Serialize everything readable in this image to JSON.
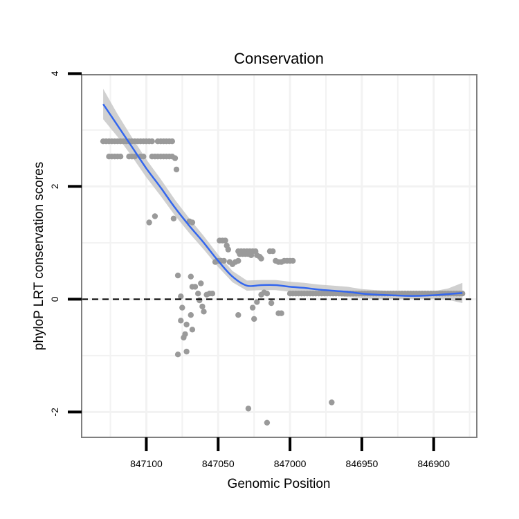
{
  "chart_data": {
    "type": "scatter",
    "title": "Conservation",
    "xlabel": "Genomic Position",
    "ylabel": "phyloP LRT conservation scores",
    "x_reversed": true,
    "xlim": [
      847145,
      846870
    ],
    "ylim": [
      -2.45,
      3.98
    ],
    "x_ticks": [
      847100,
      847050,
      847000,
      846950,
      846900
    ],
    "x_tick_labels": [
      "847100",
      "847050",
      "847000",
      "846950",
      "846900"
    ],
    "y_ticks": [
      -2,
      0,
      2,
      4
    ],
    "y_tick_labels": [
      "-2",
      "0",
      "2",
      "4"
    ],
    "reference_line": {
      "y": 0,
      "style": "dashed"
    },
    "colors": {
      "points": "#9a9a9a",
      "smooth": "#3366ee",
      "band": "#c8c8c8",
      "panel_border": "#7f7f7f",
      "grid": "#f2f2f2"
    },
    "points": [
      {
        "x": 847130,
        "y": 2.8
      },
      {
        "x": 847128,
        "y": 2.8
      },
      {
        "x": 847126,
        "y": 2.8
      },
      {
        "x": 847124,
        "y": 2.8
      },
      {
        "x": 847122,
        "y": 2.8
      },
      {
        "x": 847120,
        "y": 2.8
      },
      {
        "x": 847118,
        "y": 2.8
      },
      {
        "x": 847116,
        "y": 2.8
      },
      {
        "x": 847114,
        "y": 2.8
      },
      {
        "x": 847112,
        "y": 2.8
      },
      {
        "x": 847110,
        "y": 2.8
      },
      {
        "x": 847108,
        "y": 2.8
      },
      {
        "x": 847106,
        "y": 2.8
      },
      {
        "x": 847104,
        "y": 2.8
      },
      {
        "x": 847102,
        "y": 2.8
      },
      {
        "x": 847100,
        "y": 2.8
      },
      {
        "x": 847098,
        "y": 2.8
      },
      {
        "x": 847096,
        "y": 2.8
      },
      {
        "x": 847092,
        "y": 2.8
      },
      {
        "x": 847090,
        "y": 2.8
      },
      {
        "x": 847088,
        "y": 2.8
      },
      {
        "x": 847086,
        "y": 2.8
      },
      {
        "x": 847084,
        "y": 2.8
      },
      {
        "x": 847082,
        "y": 2.8
      },
      {
        "x": 847126,
        "y": 2.53
      },
      {
        "x": 847124,
        "y": 2.53
      },
      {
        "x": 847122,
        "y": 2.53
      },
      {
        "x": 847120,
        "y": 2.53
      },
      {
        "x": 847118,
        "y": 2.53
      },
      {
        "x": 847112,
        "y": 2.53
      },
      {
        "x": 847110,
        "y": 2.53
      },
      {
        "x": 847108,
        "y": 2.53
      },
      {
        "x": 847104,
        "y": 2.53
      },
      {
        "x": 847102,
        "y": 2.53
      },
      {
        "x": 847096,
        "y": 2.53
      },
      {
        "x": 847094,
        "y": 2.53
      },
      {
        "x": 847092,
        "y": 2.53
      },
      {
        "x": 847090,
        "y": 2.53
      },
      {
        "x": 847088,
        "y": 2.53
      },
      {
        "x": 847086,
        "y": 2.53
      },
      {
        "x": 847084,
        "y": 2.53
      },
      {
        "x": 847082,
        "y": 2.53
      },
      {
        "x": 847080,
        "y": 2.5
      },
      {
        "x": 847079,
        "y": 2.3
      },
      {
        "x": 847081,
        "y": 1.43
      },
      {
        "x": 847094,
        "y": 1.47
      },
      {
        "x": 847098,
        "y": 1.36
      },
      {
        "x": 847070,
        "y": 1.38
      },
      {
        "x": 847068,
        "y": 1.36
      },
      {
        "x": 847078,
        "y": 0.42
      },
      {
        "x": 847076,
        "y": 0.05
      },
      {
        "x": 847075,
        "y": -0.15
      },
      {
        "x": 847076,
        "y": -0.38
      },
      {
        "x": 847073,
        "y": -0.62
      },
      {
        "x": 847074,
        "y": -0.68
      },
      {
        "x": 847072,
        "y": -0.45
      },
      {
        "x": 847069,
        "y": -0.28
      },
      {
        "x": 847068,
        "y": -0.54
      },
      {
        "x": 847078,
        "y": -0.98
      },
      {
        "x": 847072,
        "y": -0.93
      },
      {
        "x": 847069,
        "y": 0.4
      },
      {
        "x": 847068,
        "y": 0.22
      },
      {
        "x": 847066,
        "y": 0.22
      },
      {
        "x": 847064,
        "y": 0.1
      },
      {
        "x": 847063,
        "y": -0.02
      },
      {
        "x": 847061,
        "y": -0.13
      },
      {
        "x": 847060,
        "y": -0.22
      },
      {
        "x": 847062,
        "y": 0.28
      },
      {
        "x": 847058,
        "y": 0.08
      },
      {
        "x": 847056,
        "y": 0.1
      },
      {
        "x": 847054,
        "y": 0.1
      },
      {
        "x": 847052,
        "y": 0.66
      },
      {
        "x": 847050,
        "y": 0.68
      },
      {
        "x": 847048,
        "y": 0.68
      },
      {
        "x": 847046,
        "y": 0.68
      },
      {
        "x": 847049,
        "y": 1.04
      },
      {
        "x": 847047,
        "y": 1.04
      },
      {
        "x": 847045,
        "y": 1.04
      },
      {
        "x": 847044,
        "y": 0.95
      },
      {
        "x": 847043,
        "y": 0.88
      },
      {
        "x": 847042,
        "y": 0.66
      },
      {
        "x": 847040,
        "y": 0.62
      },
      {
        "x": 847038,
        "y": 0.66
      },
      {
        "x": 847036,
        "y": 0.68
      },
      {
        "x": 847036,
        "y": 0.85
      },
      {
        "x": 847034,
        "y": 0.85
      },
      {
        "x": 847032,
        "y": 0.85
      },
      {
        "x": 847030,
        "y": 0.85
      },
      {
        "x": 847028,
        "y": 0.85
      },
      {
        "x": 847026,
        "y": 0.85
      },
      {
        "x": 847024,
        "y": 0.85
      },
      {
        "x": 847014,
        "y": 0.85
      },
      {
        "x": 847012,
        "y": 0.85
      },
      {
        "x": 847035,
        "y": 0.8
      },
      {
        "x": 847033,
        "y": 0.8
      },
      {
        "x": 847031,
        "y": 0.8
      },
      {
        "x": 847029,
        "y": 0.8
      },
      {
        "x": 847027,
        "y": 0.78
      },
      {
        "x": 847023,
        "y": 0.78
      },
      {
        "x": 847021,
        "y": 0.75
      },
      {
        "x": 847020,
        "y": 0.72
      },
      {
        "x": 847016,
        "y": 0.1
      },
      {
        "x": 847018,
        "y": 0.12
      },
      {
        "x": 847020,
        "y": 0.08
      },
      {
        "x": 847023,
        "y": -0.05
      },
      {
        "x": 847026,
        "y": -0.15
      },
      {
        "x": 847025,
        "y": -0.35
      },
      {
        "x": 847036,
        "y": -0.28
      },
      {
        "x": 847013,
        "y": -0.07
      },
      {
        "x": 847008,
        "y": -0.25
      },
      {
        "x": 847006,
        "y": -0.25
      },
      {
        "x": 847010,
        "y": 0.68
      },
      {
        "x": 847008,
        "y": 0.66
      },
      {
        "x": 847006,
        "y": 0.66
      },
      {
        "x": 847004,
        "y": 0.68
      },
      {
        "x": 847002,
        "y": 0.68
      },
      {
        "x": 847000,
        "y": 0.68
      },
      {
        "x": 846998,
        "y": 0.68
      },
      {
        "x": 847029,
        "y": -1.94
      },
      {
        "x": 847016,
        "y": -2.19
      },
      {
        "x": 846971,
        "y": -1.83
      },
      {
        "x": 847000,
        "y": 0.1
      },
      {
        "x": 846998,
        "y": 0.1
      },
      {
        "x": 846996,
        "y": 0.1
      },
      {
        "x": 846994,
        "y": 0.1
      },
      {
        "x": 846992,
        "y": 0.1
      },
      {
        "x": 846990,
        "y": 0.1
      },
      {
        "x": 846988,
        "y": 0.1
      },
      {
        "x": 846986,
        "y": 0.1
      },
      {
        "x": 846984,
        "y": 0.1
      },
      {
        "x": 846982,
        "y": 0.1
      },
      {
        "x": 846980,
        "y": 0.1
      },
      {
        "x": 846978,
        "y": 0.1
      },
      {
        "x": 846976,
        "y": 0.1
      },
      {
        "x": 846974,
        "y": 0.1
      },
      {
        "x": 846972,
        "y": 0.1
      },
      {
        "x": 846970,
        "y": 0.1
      },
      {
        "x": 846968,
        "y": 0.1
      },
      {
        "x": 846966,
        "y": 0.1
      },
      {
        "x": 846964,
        "y": 0.1
      },
      {
        "x": 846962,
        "y": 0.1
      },
      {
        "x": 846960,
        "y": 0.1
      },
      {
        "x": 846958,
        "y": 0.1
      },
      {
        "x": 846956,
        "y": 0.1
      },
      {
        "x": 846954,
        "y": 0.1
      },
      {
        "x": 846952,
        "y": 0.1
      },
      {
        "x": 846950,
        "y": 0.1
      },
      {
        "x": 846948,
        "y": 0.1
      },
      {
        "x": 846946,
        "y": 0.1
      },
      {
        "x": 846944,
        "y": 0.1
      },
      {
        "x": 846942,
        "y": 0.1
      },
      {
        "x": 846940,
        "y": 0.1
      },
      {
        "x": 846938,
        "y": 0.1
      },
      {
        "x": 846936,
        "y": 0.1
      },
      {
        "x": 846934,
        "y": 0.1
      },
      {
        "x": 846932,
        "y": 0.1
      },
      {
        "x": 846930,
        "y": 0.1
      },
      {
        "x": 846928,
        "y": 0.1
      },
      {
        "x": 846926,
        "y": 0.1
      },
      {
        "x": 846924,
        "y": 0.1
      },
      {
        "x": 846922,
        "y": 0.1
      },
      {
        "x": 846920,
        "y": 0.1
      },
      {
        "x": 846918,
        "y": 0.1
      },
      {
        "x": 846916,
        "y": 0.1
      },
      {
        "x": 846914,
        "y": 0.1
      },
      {
        "x": 846912,
        "y": 0.1
      },
      {
        "x": 846910,
        "y": 0.1
      },
      {
        "x": 846908,
        "y": 0.1
      },
      {
        "x": 846906,
        "y": 0.1
      },
      {
        "x": 846904,
        "y": 0.1
      },
      {
        "x": 846902,
        "y": 0.1
      },
      {
        "x": 846900,
        "y": 0.1
      },
      {
        "x": 846898,
        "y": 0.1
      },
      {
        "x": 846896,
        "y": 0.1
      },
      {
        "x": 846894,
        "y": 0.1
      },
      {
        "x": 846892,
        "y": 0.1
      },
      {
        "x": 846890,
        "y": 0.1
      },
      {
        "x": 846888,
        "y": 0.1
      },
      {
        "x": 846886,
        "y": 0.1
      },
      {
        "x": 846884,
        "y": 0.1
      },
      {
        "x": 846882,
        "y": 0.1
      },
      {
        "x": 846880,
        "y": 0.1
      }
    ],
    "smooth": {
      "x": [
        847130,
        847120,
        847110,
        847100,
        847090,
        847080,
        847070,
        847060,
        847050,
        847040,
        847030,
        847020,
        847010,
        847000,
        846990,
        846980,
        846970,
        846960,
        846950,
        846940,
        846930,
        846920,
        846910,
        846900,
        846890,
        846880
      ],
      "y": [
        3.46,
        3.08,
        2.7,
        2.32,
        1.98,
        1.62,
        1.3,
        1.0,
        0.68,
        0.4,
        0.24,
        0.25,
        0.25,
        0.22,
        0.2,
        0.17,
        0.15,
        0.13,
        0.1,
        0.08,
        0.07,
        0.06,
        0.06,
        0.07,
        0.09,
        0.11
      ],
      "band": [
        0.27,
        0.2,
        0.17,
        0.16,
        0.15,
        0.14,
        0.13,
        0.12,
        0.11,
        0.1,
        0.09,
        0.09,
        0.09,
        0.09,
        0.09,
        0.09,
        0.09,
        0.09,
        0.08,
        0.08,
        0.07,
        0.06,
        0.06,
        0.07,
        0.1,
        0.18
      ]
    }
  }
}
